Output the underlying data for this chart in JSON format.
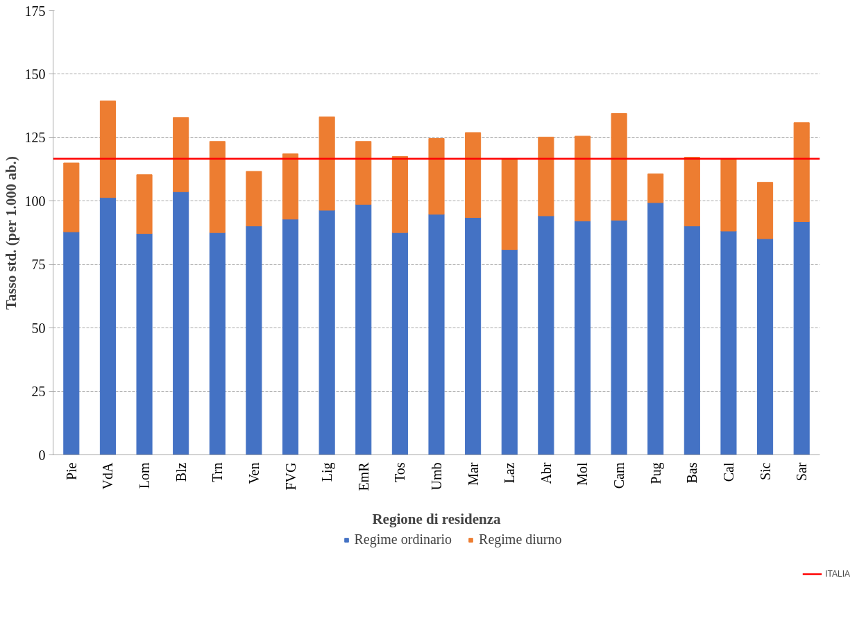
{
  "chart_data": {
    "type": "bar",
    "stacked": true,
    "xlabel": "Regione di residenza",
    "ylabel": "Tasso std. (per 1.000 ab.)",
    "categories": [
      "Pie",
      "VdA",
      "Lom",
      "Blz",
      "Trn",
      "Ven",
      "FVG",
      "Lig",
      "EmR",
      "Tos",
      "Umb",
      "Mar",
      "Laz",
      "Abr",
      "Mol",
      "Cam",
      "Pug",
      "Bas",
      "Cal",
      "Sic",
      "Sar"
    ],
    "series": [
      {
        "name": "Regime ordinario",
        "color": "#4472c4",
        "values": [
          87.9,
          101.4,
          87.2,
          103.7,
          87.6,
          90.2,
          92.9,
          96.4,
          98.7,
          87.6,
          94.8,
          93.5,
          80.9,
          94.2,
          92.2,
          92.5,
          99.4,
          90.2,
          88.2,
          85.2,
          91.9
        ]
      },
      {
        "name": "Regime diurno",
        "color": "#ed7d31",
        "values": [
          27.1,
          38.1,
          23.2,
          29.2,
          35.9,
          21.5,
          25.7,
          36.8,
          24.8,
          30.0,
          29.9,
          33.5,
          35.8,
          31.0,
          33.4,
          42.0,
          11.3,
          27.1,
          28.5,
          22.2,
          39.0
        ]
      }
    ],
    "ref_lines": [
      {
        "axis": "y",
        "value": 116.7,
        "label": "ITALIA",
        "color": "#ff0000"
      }
    ],
    "ylim": [
      0,
      175
    ],
    "yticks": [
      0,
      25,
      50,
      75,
      100,
      125,
      150,
      175
    ],
    "grid": "y",
    "legend": "bottom"
  }
}
